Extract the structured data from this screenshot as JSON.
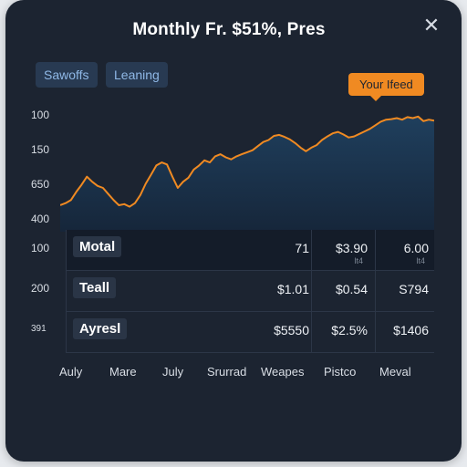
{
  "window": {
    "title": "Monthly Fr. $51%, Pres",
    "close_icon": "close-icon"
  },
  "tabs": [
    {
      "label": "Sawoffs"
    },
    {
      "label": "Leaning"
    }
  ],
  "badge": {
    "label": "Your Ifeed"
  },
  "y_labels": [
    "100",
    "150",
    "650",
    "400",
    "100",
    "200",
    "391"
  ],
  "rows": [
    {
      "label": "Motal",
      "cells": [
        "71",
        "$3.90",
        "6.00"
      ],
      "subs": [
        "",
        "lt4",
        "lt4"
      ]
    },
    {
      "label": "Teall",
      "cells": [
        "$1.01",
        "$0.54",
        "S794"
      ],
      "subs": [
        "",
        "",
        ""
      ]
    },
    {
      "label": "Ayresl",
      "cells": [
        "$5550",
        "$2.5%",
        "$1406"
      ],
      "subs": [
        "",
        "",
        ""
      ]
    }
  ],
  "x_labels": [
    "Auly",
    "Mare",
    "July",
    "Srurrad",
    "Weapes",
    "Pistco",
    "Meval"
  ],
  "colors": {
    "line": "#f08a22",
    "area_top": "#1f3f5d",
    "area_bottom": "#16263a",
    "badge": "#f08a22"
  },
  "chart_data": {
    "type": "area",
    "x": [
      0,
      1,
      2,
      3,
      4,
      5,
      6,
      7,
      8,
      9,
      10,
      11,
      12,
      13,
      14,
      15,
      16,
      17,
      18,
      19,
      20,
      21,
      22,
      23,
      24,
      25,
      26,
      27,
      28,
      29,
      30,
      31,
      32,
      33,
      34,
      35,
      36,
      37,
      38,
      39,
      40,
      41,
      42,
      43,
      44,
      45,
      46,
      47,
      48,
      49,
      50,
      51,
      52,
      53,
      54,
      55,
      56,
      57,
      58,
      59,
      60,
      61,
      62,
      63,
      64,
      65,
      66,
      67,
      68,
      69,
      70
    ],
    "y": [
      392,
      396,
      402,
      418,
      432,
      448,
      438,
      430,
      426,
      414,
      402,
      392,
      394,
      389,
      396,
      412,
      434,
      452,
      470,
      476,
      472,
      448,
      426,
      438,
      446,
      462,
      470,
      480,
      476,
      488,
      492,
      486,
      482,
      488,
      492,
      496,
      500,
      508,
      516,
      520,
      528,
      530,
      526,
      521,
      514,
      505,
      498,
      505,
      510,
      520,
      527,
      533,
      536,
      531,
      525,
      527,
      532,
      537,
      542,
      549,
      556,
      560,
      561,
      563,
      560,
      565,
      563,
      566,
      557,
      560,
      558
    ],
    "ylim": [
      340,
      580
    ]
  }
}
